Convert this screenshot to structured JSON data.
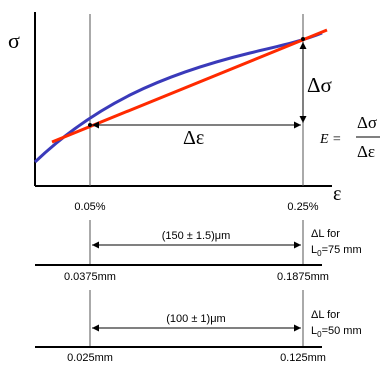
{
  "axes": {
    "y_symbol": "σ",
    "x_symbol": "ε"
  },
  "curves": {
    "stress_strain_color": "#3a3aba",
    "secant_line_color": "#ff2a00"
  },
  "strain_ticks": [
    {
      "label": "0.05%"
    },
    {
      "label": "0.25%"
    }
  ],
  "annotations": {
    "delta_sigma": "Δσ",
    "delta_epsilon": "Δε",
    "modulus_lhs": "E =",
    "modulus_numerator": "Δσ",
    "modulus_denominator": "Δε"
  },
  "gauge_rows": [
    {
      "interval": "(150 ± 1.5)μm",
      "start": "0.0375mm",
      "end": "0.1875mm",
      "delta_l_line1": "ΔL for",
      "delta_l_line2_prefix": "L",
      "delta_l_line2_sub": "0",
      "delta_l_line2_suffix": "=75 mm"
    },
    {
      "interval": "(100 ± 1)μm",
      "start": "0.025mm",
      "end": "0.125mm",
      "delta_l_line1": "ΔL for",
      "delta_l_line2_prefix": "L",
      "delta_l_line2_sub": "0",
      "delta_l_line2_suffix": "=50 mm"
    }
  ]
}
